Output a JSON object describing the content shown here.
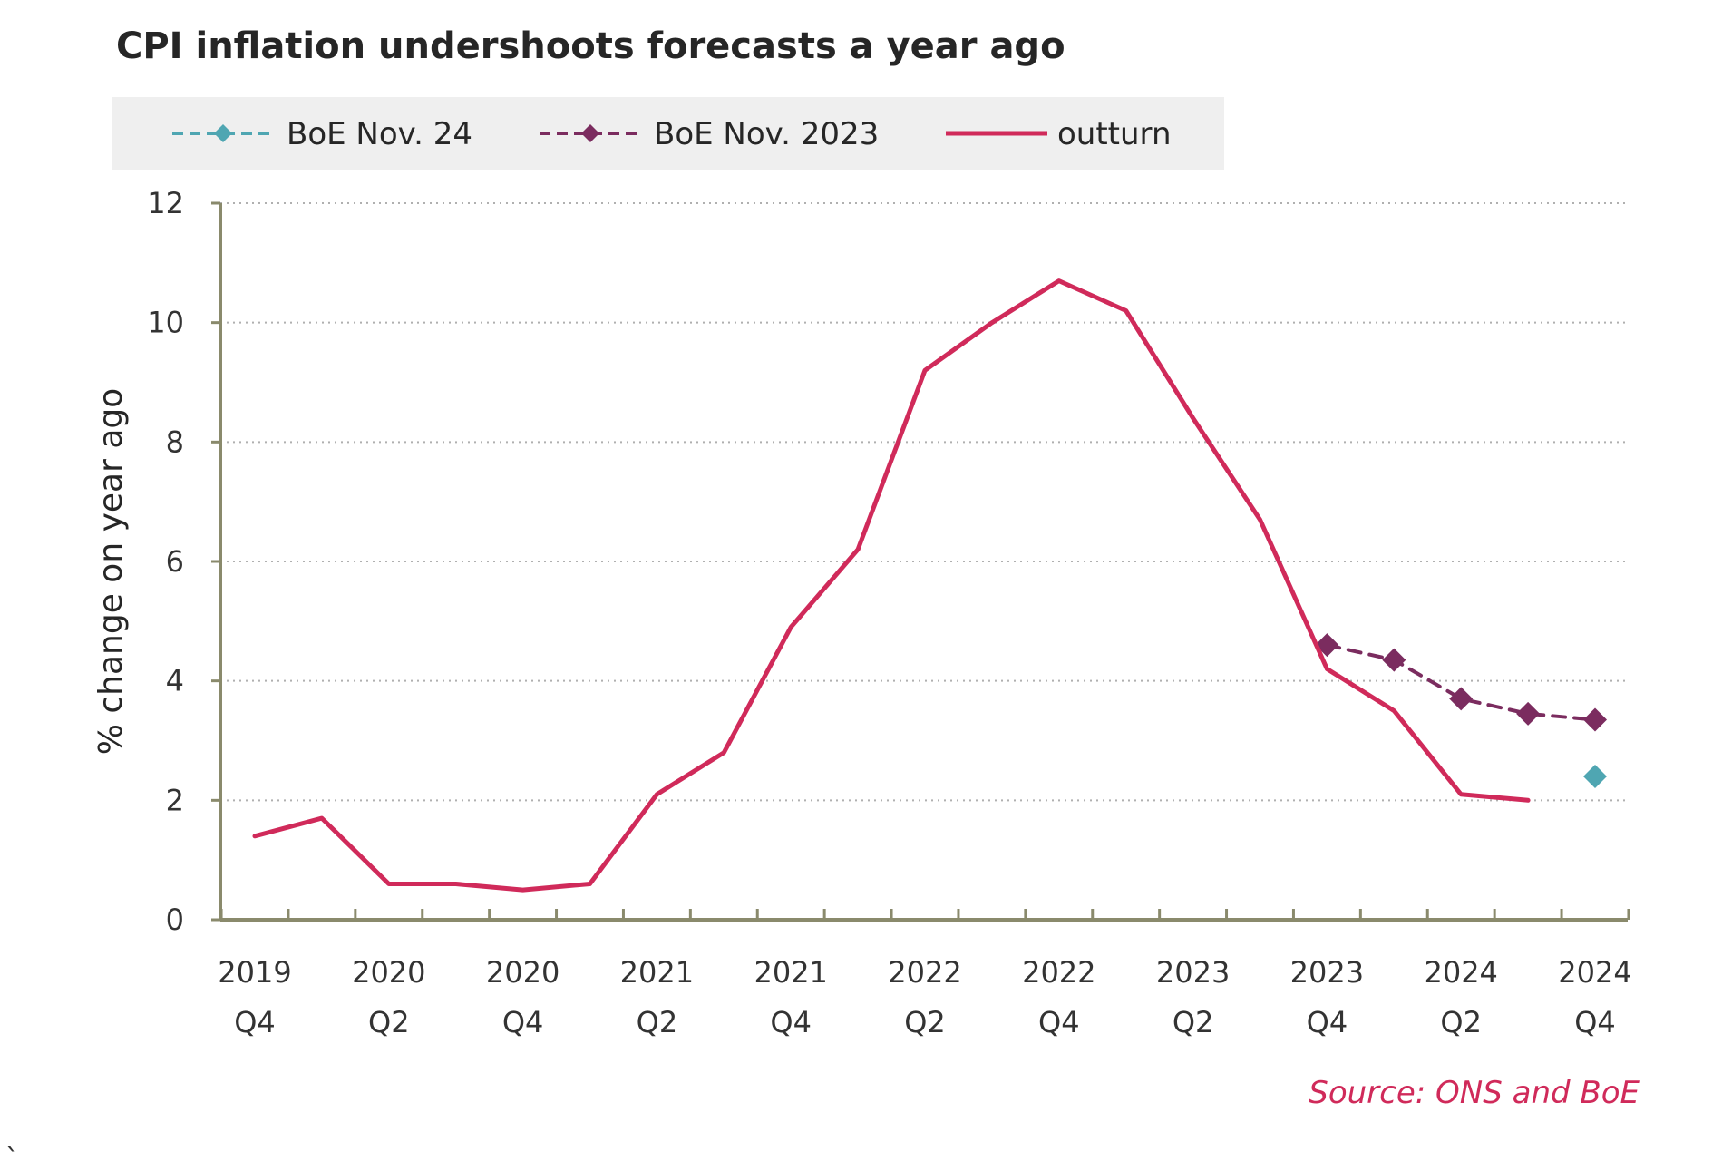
{
  "chart_data": {
    "type": "line",
    "title": "CPI inflation undershoots forecasts a year ago",
    "ylabel": "% change on year ago",
    "xlabel": "",
    "ylim": [
      0,
      12
    ],
    "yticks": [
      0,
      2,
      4,
      6,
      8,
      10,
      12
    ],
    "grid": "horizontal dotted",
    "legend_position": "top",
    "periods": [
      "2019 Q4",
      "2020 Q1",
      "2020 Q2",
      "2020 Q3",
      "2020 Q4",
      "2021 Q1",
      "2021 Q2",
      "2021 Q3",
      "2021 Q4",
      "2022 Q1",
      "2022 Q2",
      "2022 Q3",
      "2022 Q4",
      "2023 Q1",
      "2023 Q2",
      "2023 Q3",
      "2023 Q4",
      "2024 Q1",
      "2024 Q2",
      "2024 Q3",
      "2024 Q4"
    ],
    "tick_labels": [
      {
        "period": "2019 Q4",
        "year": "2019",
        "quarter": "Q4"
      },
      {
        "period": "2020 Q2",
        "year": "2020",
        "quarter": "Q2"
      },
      {
        "period": "2020 Q4",
        "year": "2020",
        "quarter": "Q4"
      },
      {
        "period": "2021 Q2",
        "year": "2021",
        "quarter": "Q2"
      },
      {
        "period": "2021 Q4",
        "year": "2021",
        "quarter": "Q4"
      },
      {
        "period": "2022 Q2",
        "year": "2022",
        "quarter": "Q2"
      },
      {
        "period": "2022 Q4",
        "year": "2022",
        "quarter": "Q4"
      },
      {
        "period": "2023 Q2",
        "year": "2023",
        "quarter": "Q2"
      },
      {
        "period": "2023 Q4",
        "year": "2023",
        "quarter": "Q4"
      },
      {
        "period": "2024 Q2",
        "year": "2024",
        "quarter": "Q2"
      },
      {
        "period": "2024 Q4",
        "year": "2024",
        "quarter": "Q4"
      }
    ],
    "series": [
      {
        "name": "BoE Nov. 24",
        "color": "#4fa6b2",
        "style": "dashed",
        "marker": "diamond",
        "points": [
          {
            "period": "2024 Q4",
            "value": 2.4
          }
        ]
      },
      {
        "name": "BoE Nov. 2023",
        "color": "#7b2c5f",
        "style": "dashed",
        "marker": "diamond",
        "points": [
          {
            "period": "2023 Q4",
            "value": 4.6
          },
          {
            "period": "2024 Q1",
            "value": 4.35
          },
          {
            "period": "2024 Q2",
            "value": 3.7
          },
          {
            "period": "2024 Q3",
            "value": 3.45
          },
          {
            "period": "2024 Q4",
            "value": 3.35
          }
        ]
      },
      {
        "name": "outturn",
        "color": "#d02a5a",
        "style": "solid",
        "marker": "none",
        "points": [
          {
            "period": "2019 Q4",
            "value": 1.4
          },
          {
            "period": "2020 Q1",
            "value": 1.7
          },
          {
            "period": "2020 Q2",
            "value": 0.6
          },
          {
            "period": "2020 Q3",
            "value": 0.6
          },
          {
            "period": "2020 Q4",
            "value": 0.5
          },
          {
            "period": "2021 Q1",
            "value": 0.6
          },
          {
            "period": "2021 Q2",
            "value": 2.1
          },
          {
            "period": "2021 Q3",
            "value": 2.8
          },
          {
            "period": "2021 Q4",
            "value": 4.9
          },
          {
            "period": "2022 Q1",
            "value": 6.2
          },
          {
            "period": "2022 Q2",
            "value": 9.2
          },
          {
            "period": "2022 Q3",
            "value": 10.0
          },
          {
            "period": "2022 Q4",
            "value": 10.7
          },
          {
            "period": "2023 Q1",
            "value": 10.2
          },
          {
            "period": "2023 Q2",
            "value": 8.4
          },
          {
            "period": "2023 Q3",
            "value": 6.7
          },
          {
            "period": "2023 Q4",
            "value": 4.2
          },
          {
            "period": "2024 Q1",
            "value": 3.5
          },
          {
            "period": "2024 Q2",
            "value": 2.1
          },
          {
            "period": "2024 Q3",
            "value": 2.0
          }
        ]
      }
    ]
  },
  "colors": {
    "axis": "#8a8a6c",
    "grid": "#b0b0b0",
    "legend_bg": "#efefef",
    "source": "#d02a5a"
  },
  "source": "Source: ONS and BoE",
  "stray_mark": "`"
}
